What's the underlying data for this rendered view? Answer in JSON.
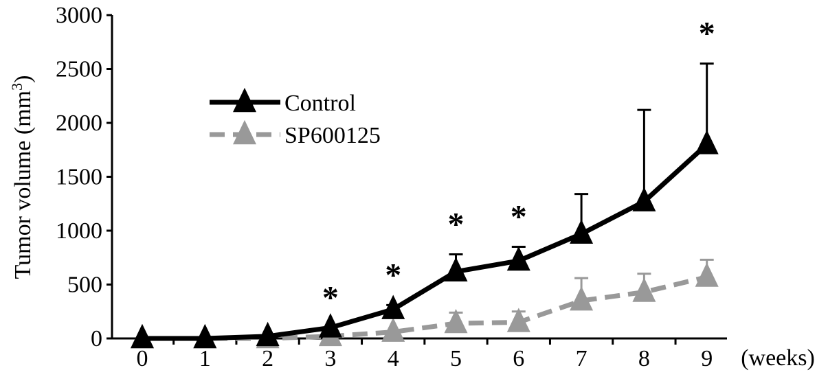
{
  "chart_data": {
    "type": "line",
    "title": "",
    "ylabel": "Tumor volume (mm",
    "ylabel_superscript": "3",
    "ylabel_close": ")",
    "xlabel": "(weeks)",
    "ylim": [
      0,
      3000
    ],
    "yticks": [
      0,
      500,
      1000,
      1500,
      2000,
      2500,
      3000
    ],
    "x": [
      0,
      1,
      2,
      3,
      4,
      5,
      6,
      7,
      8,
      9
    ],
    "xtick_labels": [
      "0",
      "1",
      "2",
      "3",
      "4",
      "5",
      "6",
      "7",
      "8",
      "9"
    ],
    "grid": false,
    "legend_position": "upper-left",
    "series": [
      {
        "name": "Control",
        "color": "#000000",
        "line_style": "solid",
        "marker": "triangle",
        "values": [
          0,
          0,
          20,
          100,
          270,
          620,
          720,
          970,
          1270,
          1800
        ],
        "error_upper": [
          0,
          0,
          0,
          0,
          40,
          160,
          130,
          370,
          850,
          750
        ]
      },
      {
        "name": "SP600125",
        "color": "#999999",
        "line_style": "dashed",
        "marker": "triangle",
        "values": [
          0,
          0,
          0,
          20,
          60,
          140,
          150,
          350,
          430,
          570
        ],
        "error_upper": [
          0,
          0,
          0,
          0,
          0,
          100,
          100,
          210,
          170,
          160
        ]
      }
    ],
    "significance": {
      "symbol": "*",
      "x": [
        3,
        4,
        5,
        6,
        9
      ]
    }
  }
}
